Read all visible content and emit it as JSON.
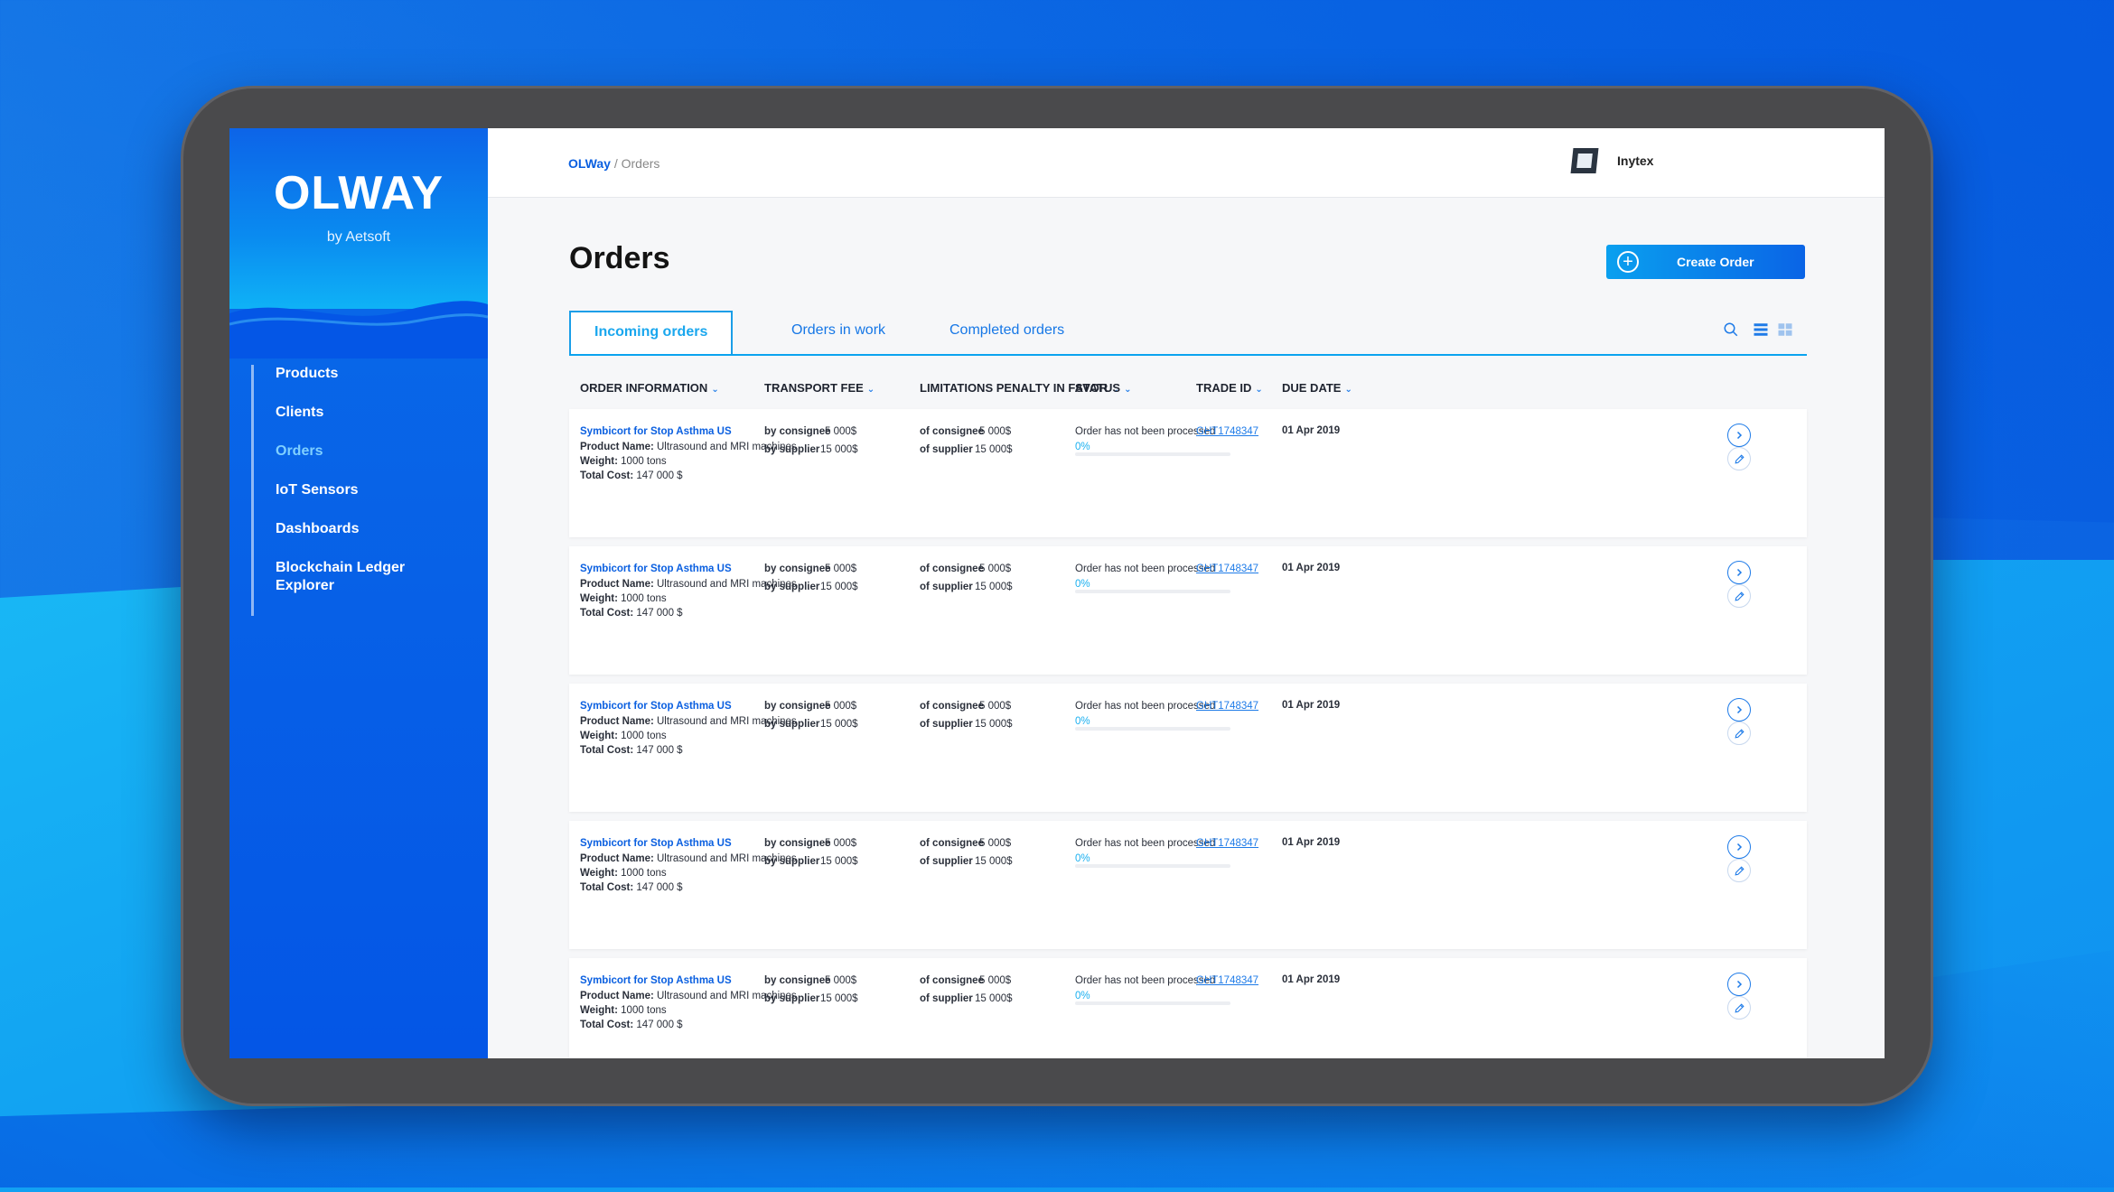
{
  "brand": {
    "logo": "OLWAY",
    "sub": "by Aetsoft"
  },
  "sidebar": {
    "items": [
      {
        "label": "Products",
        "active": false
      },
      {
        "label": "Clients",
        "active": false
      },
      {
        "label": "Orders",
        "active": true
      },
      {
        "label": "IoT Sensors",
        "active": false
      },
      {
        "label": "Dashboards",
        "active": false
      },
      {
        "label": "Blockchain Ledger Explorer",
        "active": false
      }
    ]
  },
  "breadcrumb": {
    "home": "OLWay",
    "sep": " / ",
    "current": "Orders"
  },
  "topbar": {
    "company": "Inytex",
    "icons": [
      "bell-icon",
      "gear-icon",
      "logout-icon"
    ]
  },
  "page": {
    "title": "Orders",
    "create_label": "Create Order"
  },
  "tabs": [
    {
      "label": "Incoming orders",
      "active": true
    },
    {
      "label": "Orders in work",
      "active": false
    },
    {
      "label": "Completed orders",
      "active": false
    }
  ],
  "columns": [
    "ORDER INFORMATION",
    "TRANSPORT FEE",
    "LIMITATIONS PENALTY IN FAVOR",
    "STATUS",
    "TRADE ID",
    "DUE DATE"
  ],
  "orders": [
    {
      "product": "Symbicort for Stop Asthma US",
      "product_name_label": "Product Name:",
      "product_name": "Ultrasound and MRI machines",
      "weight_label": "Weight:",
      "weight": "1000 tons",
      "cost_label": "Total Cost:",
      "cost": "147 000 $",
      "fee_consignee_label": "by consignee",
      "fee_consignee": "5 000$",
      "fee_supplier_label": "by supplier",
      "fee_supplier": "15 000$",
      "pen_consignee_label": "of consignee",
      "pen_consignee": "5 000$",
      "pen_supplier_label": "of supplier",
      "pen_supplier": "15 000$",
      "status": "Order has not been processed",
      "progress": "0%",
      "trade_id": "GHT1748347",
      "due": "01 Apr 2019"
    },
    {
      "product": "Symbicort for Stop Asthma US",
      "product_name_label": "Product Name:",
      "product_name": "Ultrasound and MRI machines",
      "weight_label": "Weight:",
      "weight": "1000 tons",
      "cost_label": "Total Cost:",
      "cost": "147 000 $",
      "fee_consignee_label": "by consignee",
      "fee_consignee": "5 000$",
      "fee_supplier_label": "by supplier",
      "fee_supplier": "15 000$",
      "pen_consignee_label": "of consignee",
      "pen_consignee": "5 000$",
      "pen_supplier_label": "of supplier",
      "pen_supplier": "15 000$",
      "status": "Order has not been processed",
      "progress": "0%",
      "trade_id": "GHT1748347",
      "due": "01 Apr 2019"
    },
    {
      "product": "Symbicort for Stop Asthma US",
      "product_name_label": "Product Name:",
      "product_name": "Ultrasound and MRI machines",
      "weight_label": "Weight:",
      "weight": "1000 tons",
      "cost_label": "Total Cost:",
      "cost": "147 000 $",
      "fee_consignee_label": "by consignee",
      "fee_consignee": "5 000$",
      "fee_supplier_label": "by supplier",
      "fee_supplier": "15 000$",
      "pen_consignee_label": "of consignee",
      "pen_consignee": "5 000$",
      "pen_supplier_label": "of supplier",
      "pen_supplier": "15 000$",
      "status": "Order has not been processed",
      "progress": "0%",
      "trade_id": "GHT1748347",
      "due": "01 Apr 2019"
    },
    {
      "product": "Symbicort for Stop Asthma US",
      "product_name_label": "Product Name:",
      "product_name": "Ultrasound and MRI machines",
      "weight_label": "Weight:",
      "weight": "1000 tons",
      "cost_label": "Total Cost:",
      "cost": "147 000 $",
      "fee_consignee_label": "by consignee",
      "fee_consignee": "5 000$",
      "fee_supplier_label": "by supplier",
      "fee_supplier": "15 000$",
      "pen_consignee_label": "of consignee",
      "pen_consignee": "5 000$",
      "pen_supplier_label": "of supplier",
      "pen_supplier": "15 000$",
      "status": "Order has not been processed",
      "progress": "0%",
      "trade_id": "GHT1748347",
      "due": "01 Apr 2019"
    },
    {
      "product": "Symbicort for Stop Asthma US",
      "product_name_label": "Product Name:",
      "product_name": "Ultrasound and MRI machines",
      "weight_label": "Weight:",
      "weight": "1000 tons",
      "cost_label": "Total Cost:",
      "cost": "147 000 $",
      "fee_consignee_label": "by consignee",
      "fee_consignee": "5 000$",
      "fee_supplier_label": "by supplier",
      "fee_supplier": "15 000$",
      "pen_consignee_label": "of consignee",
      "pen_consignee": "5 000$",
      "pen_supplier_label": "of supplier",
      "pen_supplier": "15 000$",
      "status": "Order has not been processed",
      "progress": "0%",
      "trade_id": "GHT1748347",
      "due": "01 Apr 2019"
    }
  ],
  "colors": {
    "accent": "#0a5fe0",
    "accent_light": "#1aa7ee",
    "sidebar": "#0456e6"
  }
}
